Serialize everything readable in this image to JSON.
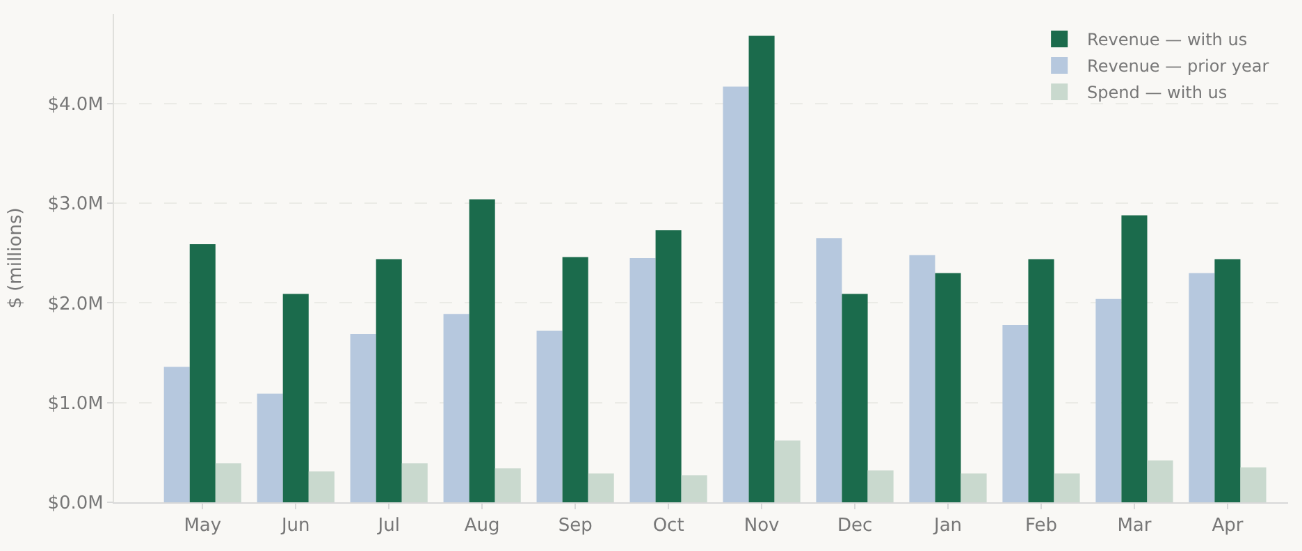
{
  "chart_data": {
    "type": "bar",
    "ylabel": "$ (millions)",
    "categories": [
      "May",
      "Jun",
      "Jul",
      "Aug",
      "Sep",
      "Oct",
      "Nov",
      "Dec",
      "Jan",
      "Feb",
      "Mar",
      "Apr"
    ],
    "series": [
      {
        "name": "Revenue — prior year",
        "color": "#b6c8de",
        "values": [
          1.36,
          1.09,
          1.69,
          1.89,
          1.72,
          2.45,
          4.17,
          2.65,
          2.48,
          1.78,
          2.04,
          2.3
        ]
      },
      {
        "name": "Revenue — with us",
        "color": "#1b6b4c",
        "values": [
          2.59,
          2.09,
          2.44,
          3.04,
          2.46,
          2.73,
          4.68,
          2.09,
          2.3,
          2.44,
          2.88,
          2.44
        ]
      },
      {
        "name": "Spend — with us",
        "color": "#c9d9ce",
        "values": [
          0.39,
          0.31,
          0.39,
          0.34,
          0.29,
          0.27,
          0.62,
          0.32,
          0.29,
          0.29,
          0.42,
          0.35
        ]
      }
    ],
    "ylim": [
      0,
      4.9
    ],
    "yticks": [
      {
        "value": 0,
        "label": "$0.0M"
      },
      {
        "value": 1,
        "label": "$1.0M"
      },
      {
        "value": 2,
        "label": "$2.0M"
      },
      {
        "value": 3,
        "label": "$3.0M"
      },
      {
        "value": 4,
        "label": "$4.0M"
      }
    ],
    "grid": "y",
    "legend": "top right"
  }
}
